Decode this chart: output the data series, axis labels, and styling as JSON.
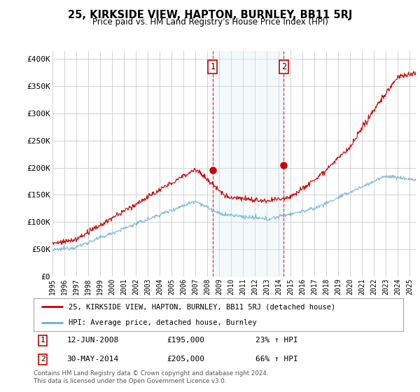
{
  "title": "25, KIRKSIDE VIEW, HAPTON, BURNLEY, BB11 5RJ",
  "subtitle": "Price paid vs. HM Land Registry's House Price Index (HPI)",
  "ylabel_ticks": [
    "£0",
    "£50K",
    "£100K",
    "£150K",
    "£200K",
    "£250K",
    "£300K",
    "£350K",
    "£400K"
  ],
  "ytick_values": [
    0,
    50000,
    100000,
    150000,
    200000,
    250000,
    300000,
    350000,
    400000
  ],
  "ylim": [
    0,
    415000
  ],
  "xlim_start": 1995.0,
  "xlim_end": 2025.5,
  "sale1_date": 2008.45,
  "sale1_price": 195000,
  "sale1_label": "1",
  "sale1_hpi_pct": "23% ↑ HPI",
  "sale1_date_str": "12-JUN-2008",
  "sale2_date": 2014.41,
  "sale2_price": 205000,
  "sale2_label": "2",
  "sale2_hpi_pct": "66% ↑ HPI",
  "sale2_date_str": "30-MAY-2014",
  "hpi_color": "#6baed6",
  "price_color": "#cc0000",
  "sale_dot_color": "#cc0000",
  "shade_color": "#d6e8f7",
  "legend_line1": "25, KIRKSIDE VIEW, HAPTON, BURNLEY, BB11 5RJ (detached house)",
  "legend_line2": "HPI: Average price, detached house, Burnley",
  "footer": "Contains HM Land Registry data © Crown copyright and database right 2024.\nThis data is licensed under the Open Government Licence v3.0.",
  "background_color": "#ffffff",
  "grid_color": "#cccccc"
}
